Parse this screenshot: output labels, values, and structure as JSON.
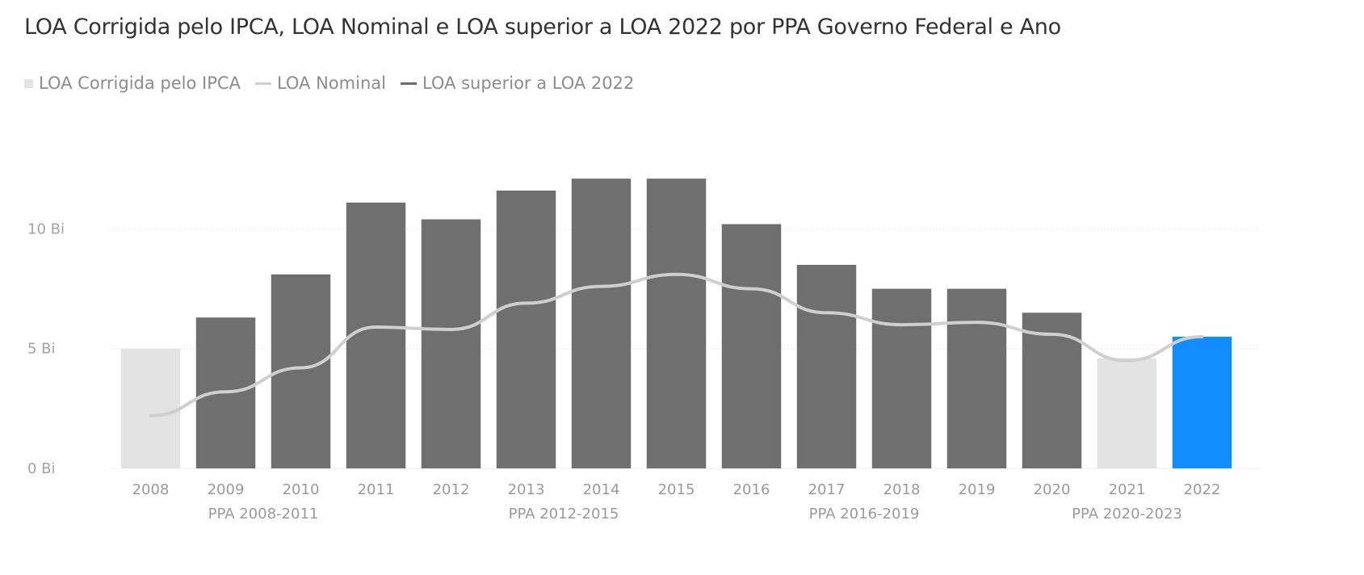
{
  "title": "LOA Corrigida pelo IPCA, LOA Nominal e LOA superior a LOA 2022 por PPA Governo Federal e Ano",
  "legend": {
    "items": [
      {
        "label": "LOA Corrigida pelo IPCA",
        "symbol": "square",
        "color": "#e3e3e3"
      },
      {
        "label": "LOA Nominal",
        "symbol": "line",
        "color": "#cfcfcf"
      },
      {
        "label": "LOA superior a LOA 2022",
        "symbol": "line",
        "color": "#6b6b6b"
      }
    ]
  },
  "colors": {
    "bar_default": "#e3e3e3",
    "bar_above_2022": "#6f6f6f",
    "bar_2022": "#118dff",
    "line_nominal": "#cfcfcf",
    "gridline": "#eeeeee"
  },
  "chart_data": {
    "type": "bar",
    "title": "LOA Corrigida pelo IPCA, LOA Nominal e LOA superior a LOA 2022 por PPA Governo Federal e Ano",
    "categories": [
      "2008",
      "2009",
      "2010",
      "2011",
      "2012",
      "2013",
      "2014",
      "2015",
      "2016",
      "2017",
      "2018",
      "2019",
      "2020",
      "2021",
      "2022"
    ],
    "groups": [
      {
        "label": "PPA 2008-2011",
        "categories": [
          "2008",
          "2009",
          "2010",
          "2011"
        ]
      },
      {
        "label": "PPA 2012-2015",
        "categories": [
          "2012",
          "2013",
          "2014",
          "2015"
        ]
      },
      {
        "label": "PPA 2016-2019",
        "categories": [
          "2016",
          "2017",
          "2018",
          "2019"
        ]
      },
      {
        "label": "PPA 2020-2023",
        "categories": [
          "2020",
          "2021",
          "2022"
        ]
      }
    ],
    "series": [
      {
        "name": "LOA Corrigida pelo IPCA",
        "kind": "bar",
        "values": [
          5.0,
          6.3,
          8.1,
          11.1,
          10.4,
          11.6,
          12.1,
          12.1,
          10.2,
          8.5,
          7.5,
          7.5,
          6.5,
          4.6,
          5.5
        ]
      },
      {
        "name": "LOA Nominal",
        "kind": "line",
        "values": [
          2.2,
          3.2,
          4.2,
          5.9,
          5.8,
          6.9,
          7.6,
          8.1,
          7.5,
          6.5,
          6.0,
          6.1,
          5.6,
          4.5,
          5.5
        ]
      }
    ],
    "highlight": {
      "series": "LOA superior a LOA 2022",
      "categories": [
        "2009",
        "2010",
        "2011",
        "2012",
        "2013",
        "2014",
        "2015",
        "2016",
        "2017",
        "2018",
        "2019",
        "2020"
      ]
    },
    "selected_category": "2022",
    "yaxis": {
      "ticks": [
        0,
        5,
        10
      ],
      "tick_labels": [
        "0 Bi",
        "5 Bi",
        "10 Bi"
      ]
    },
    "ylim": [
      0,
      14.5
    ],
    "grid": true,
    "legend_position": "top-left"
  }
}
